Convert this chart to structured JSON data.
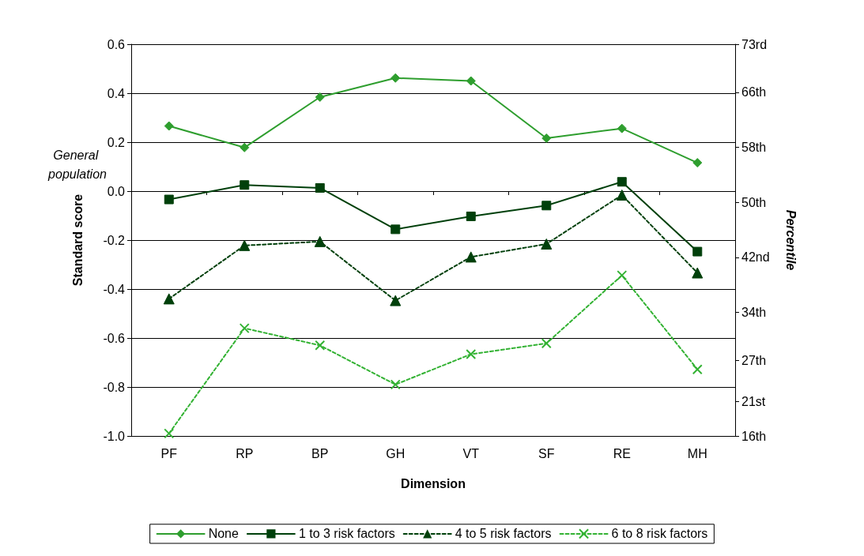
{
  "chart_data": {
    "type": "line",
    "xlabel": "Dimension",
    "ylabel": "Standard score",
    "y2label": "Percentile",
    "categories": [
      "PF",
      "RP",
      "BP",
      "GH",
      "VT",
      "SF",
      "RE",
      "MH"
    ],
    "series": [
      {
        "name": "None",
        "color": "#2e9e2e",
        "marker": "diamond",
        "line_style": "solid",
        "values": [
          0.266,
          0.178,
          0.384,
          0.462,
          0.45,
          0.216,
          0.256,
          0.116
        ]
      },
      {
        "name": "1 to 3 risk factors",
        "color": "#00400b",
        "marker": "square",
        "line_style": "solid",
        "values": [
          -0.034,
          0.025,
          0.013,
          -0.156,
          -0.103,
          -0.059,
          0.038,
          -0.247
        ]
      },
      {
        "name": "4 to 5 risk factors",
        "color": "#00400b",
        "marker": "triangle",
        "line_style": "dashed",
        "values": [
          -0.44,
          -0.222,
          -0.206,
          -0.447,
          -0.269,
          -0.216,
          -0.016,
          -0.334
        ]
      },
      {
        "name": "6 to 8 risk factors",
        "color": "#33b233",
        "marker": "cross",
        "line_style": "dashed",
        "values": [
          -0.99,
          -0.56,
          -0.63,
          -0.79,
          -0.666,
          -0.622,
          -0.344,
          -0.728
        ]
      }
    ],
    "ylim": [
      -1.0,
      0.6
    ],
    "yticks": [
      {
        "value": -1.0,
        "label": "-1.0"
      },
      -0.8,
      -0.6,
      -0.4,
      -0.2,
      {
        "value": 0,
        "label": "0.0"
      },
      0.2,
      0.4,
      0.6
    ],
    "y2lim": [
      16,
      73
    ],
    "y2ticks": [
      {
        "value": 16,
        "label": "16th"
      },
      {
        "value": 21,
        "label": "21st"
      },
      {
        "value": 27,
        "label": "27th"
      },
      {
        "value": 34,
        "label": "34th"
      },
      {
        "value": 42,
        "label": "42nd"
      },
      {
        "value": 50,
        "label": "50th"
      },
      {
        "value": 58,
        "label": "58th"
      },
      {
        "value": 66,
        "label": "66th"
      },
      {
        "value": 73,
        "label": "73rd"
      }
    ],
    "annotations": [
      "General population"
    ],
    "grid": "y",
    "legend": "bottom"
  }
}
